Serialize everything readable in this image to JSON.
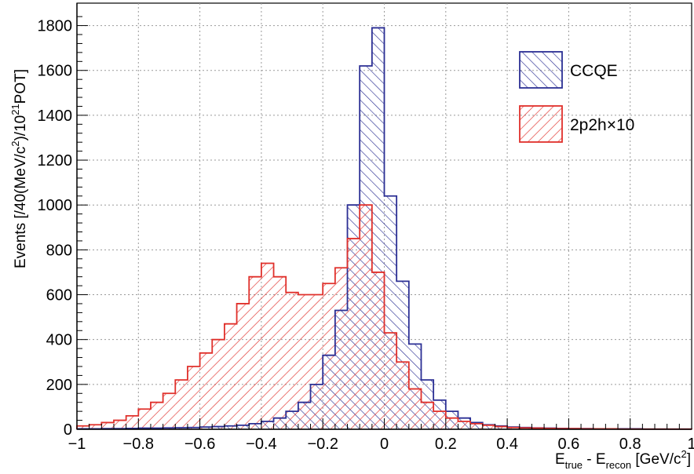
{
  "chart_data": {
    "type": "bar",
    "title": "",
    "xlabel": "E_true - E_recon [GeV/c²]",
    "xlabel_parts": {
      "main": "E",
      "sub1": "true",
      "mid": " - E",
      "sub2": "recon",
      "unit": " [GeV/c",
      "sup": "2",
      "close": "]"
    },
    "ylabel": "Events [/40(MeV/c²)/10²¹POT]",
    "ylabel_parts": {
      "a": "Events [/40(MeV/c",
      "sup1": "2",
      "b": ")/10",
      "sup2": "21",
      "c": "POT]"
    },
    "xlim": [
      -1,
      1
    ],
    "ylim": [
      0,
      1900
    ],
    "grid": true,
    "grid_style": "dotted",
    "legend_position": "top-right",
    "xticks": [
      -1,
      -0.8,
      -0.6,
      -0.4,
      -0.2,
      0,
      0.2,
      0.4,
      0.6,
      0.8,
      1
    ],
    "xtick_labels": [
      "−1",
      "−0.8",
      "−0.6",
      "−0.4",
      "−0.2",
      "0",
      "0.2",
      "0.4",
      "0.6",
      "0.8",
      "1"
    ],
    "yticks": [
      0,
      200,
      400,
      600,
      800,
      1000,
      1200,
      1400,
      1600,
      1800
    ],
    "ytick_labels": [
      "0",
      "200",
      "400",
      "600",
      "800",
      "1000",
      "1200",
      "1400",
      "1600",
      "1800"
    ],
    "bin_edges_start": -1,
    "bin_width": 0.04,
    "series": [
      {
        "name": "CCQE",
        "color": "#2b2f94",
        "hatch": "back-diagonal",
        "values": [
          2,
          2,
          3,
          3,
          4,
          5,
          5,
          6,
          7,
          8,
          10,
          12,
          15,
          18,
          25,
          35,
          50,
          80,
          120,
          200,
          330,
          530,
          1000,
          1620,
          1790,
          1040,
          660,
          380,
          220,
          130,
          80,
          50,
          30,
          20,
          15,
          10,
          8,
          6,
          5,
          4,
          3,
          3,
          2,
          2,
          2,
          2,
          1,
          1,
          1,
          1
        ]
      },
      {
        "name": "2p2h×10",
        "color": "#e0302b",
        "hatch": "forward-diagonal",
        "values": [
          15,
          20,
          30,
          40,
          60,
          90,
          120,
          160,
          220,
          280,
          340,
          400,
          470,
          560,
          680,
          740,
          680,
          610,
          600,
          600,
          650,
          720,
          850,
          1000,
          700,
          430,
          300,
          180,
          120,
          80,
          50,
          35,
          25,
          18,
          12,
          8,
          6,
          5,
          4,
          3,
          3,
          2,
          2,
          2,
          1,
          1,
          1,
          1,
          1,
          1
        ]
      }
    ]
  }
}
